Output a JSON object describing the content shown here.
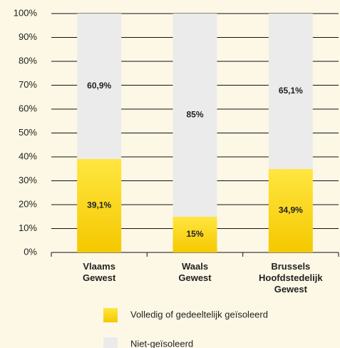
{
  "chart_data": {
    "type": "stacked_bar",
    "categories": [
      "Vlaams Gewest",
      "Waals Gewest",
      "Brussels Hoofdstedelijk Gewest"
    ],
    "series": [
      {
        "name": "Volledig of gedeeltelijk geïsoleerd",
        "color": "#ffd800",
        "values": [
          39.1,
          15,
          34.9
        ],
        "value_labels": [
          "39,1%",
          "15%",
          "34,9%"
        ]
      },
      {
        "name": "Niet-geïsoleerd",
        "color": "#ebebeb",
        "values": [
          60.9,
          85,
          65.1
        ],
        "value_labels": [
          "60,9%",
          "85%",
          "65,1%"
        ]
      }
    ],
    "ylim": [
      0,
      100
    ],
    "yticks": [
      {
        "value": 0,
        "label": "0%"
      },
      {
        "value": 10,
        "label": "10%"
      },
      {
        "value": 20,
        "label": "20%"
      },
      {
        "value": 30,
        "label": "30%"
      },
      {
        "value": 40,
        "label": "40%"
      },
      {
        "value": 50,
        "label": "50%"
      },
      {
        "value": 60,
        "label": "60%"
      },
      {
        "value": 70,
        "label": "70%"
      },
      {
        "value": 80,
        "label": "80%"
      },
      {
        "value": 90,
        "label": "90%"
      },
      {
        "value": 100,
        "label": "100%"
      }
    ],
    "grid": true,
    "legend": "bottom"
  }
}
